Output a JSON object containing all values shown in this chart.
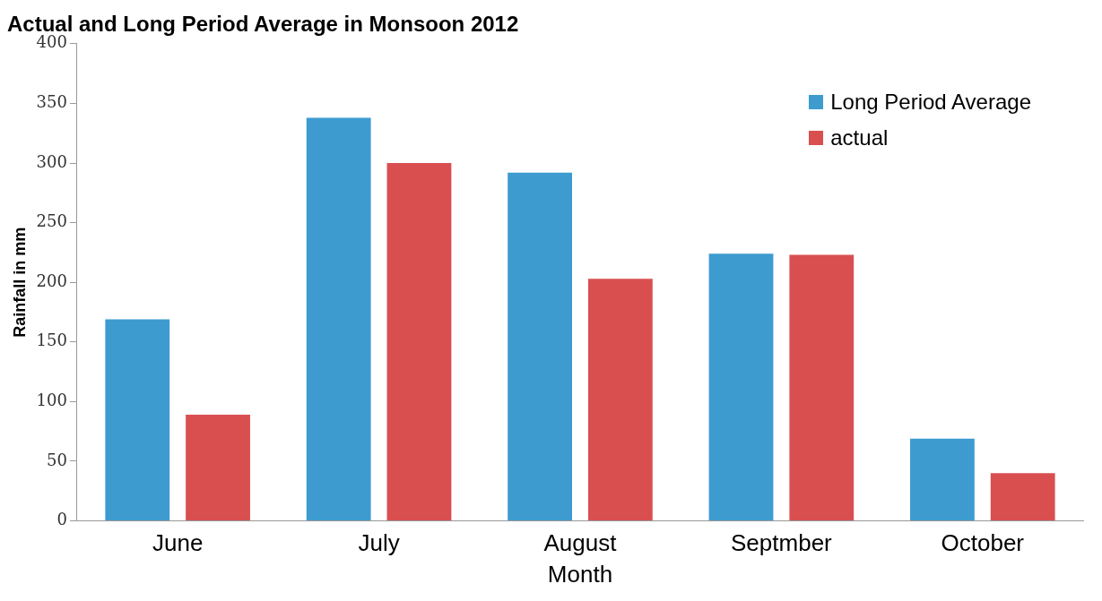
{
  "chart_data": {
    "type": "bar",
    "title": "Actual and Long Period Average in Monsoon 2012",
    "xlabel": "Month",
    "ylabel": "Rainfall in mm",
    "categories": [
      "June",
      "July",
      "August",
      "Septmber",
      "October"
    ],
    "series": [
      {
        "name": "Long Period Average",
        "color": "#3d9bd0",
        "values": [
          169,
          338,
          292,
          224,
          69
        ]
      },
      {
        "name": "actual",
        "color": "#d94f50",
        "values": [
          89,
          300,
          203,
          223,
          40
        ]
      }
    ],
    "ylim": [
      0,
      400
    ],
    "yticks": [
      0,
      50,
      100,
      150,
      200,
      250,
      300,
      350,
      400
    ],
    "grid": false,
    "legend": "top right"
  }
}
